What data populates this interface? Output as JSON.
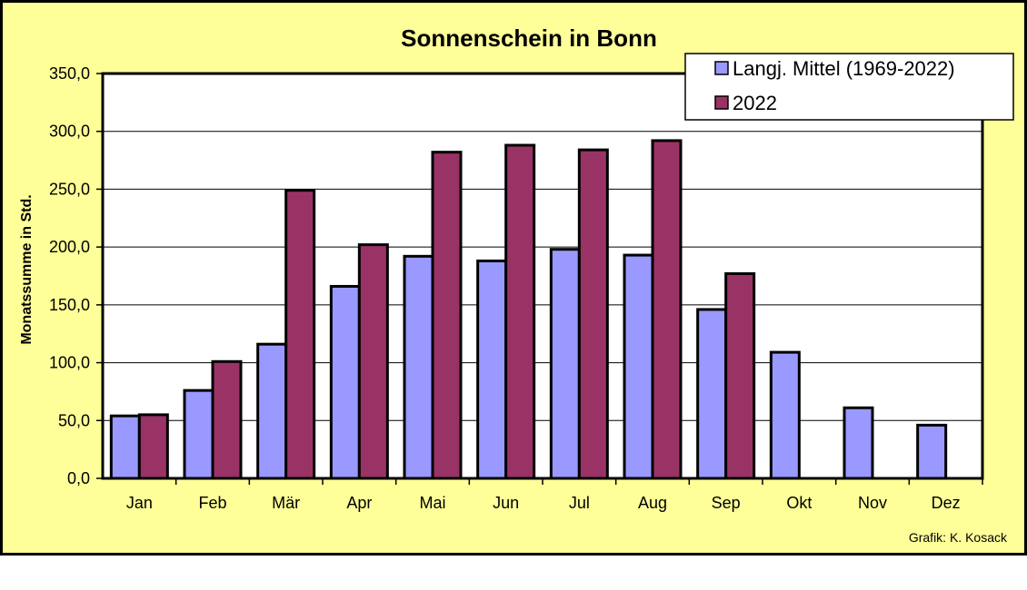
{
  "chart_data": {
    "type": "bar",
    "title": "Sonnenschein in Bonn",
    "ylabel": "Monatssumme in Std.",
    "xlabel": "",
    "ylim": [
      0,
      350
    ],
    "yticks": [
      "0,0",
      "50,0",
      "100,0",
      "150,0",
      "200,0",
      "250,0",
      "300,0",
      "350,0"
    ],
    "categories": [
      "Jan",
      "Feb",
      "Mär",
      "Apr",
      "Mai",
      "Jun",
      "Jul",
      "Aug",
      "Sep",
      "Okt",
      "Nov",
      "Dez"
    ],
    "series": [
      {
        "name": "Langj. Mittel (1969-2022)",
        "color": "#9999ff",
        "values": [
          54,
          76,
          116,
          166,
          192,
          188,
          198,
          193,
          146,
          109,
          61,
          46
        ]
      },
      {
        "name": "2022",
        "color": "#993366",
        "values": [
          55,
          101,
          249,
          202,
          282,
          288,
          284,
          292,
          177,
          null,
          null,
          null
        ]
      }
    ],
    "grid": true,
    "legend_position": "top-right",
    "plot_background": "#ffffff",
    "chart_background": "#ffff99"
  },
  "credit": "Grafik:  K. Kosack"
}
